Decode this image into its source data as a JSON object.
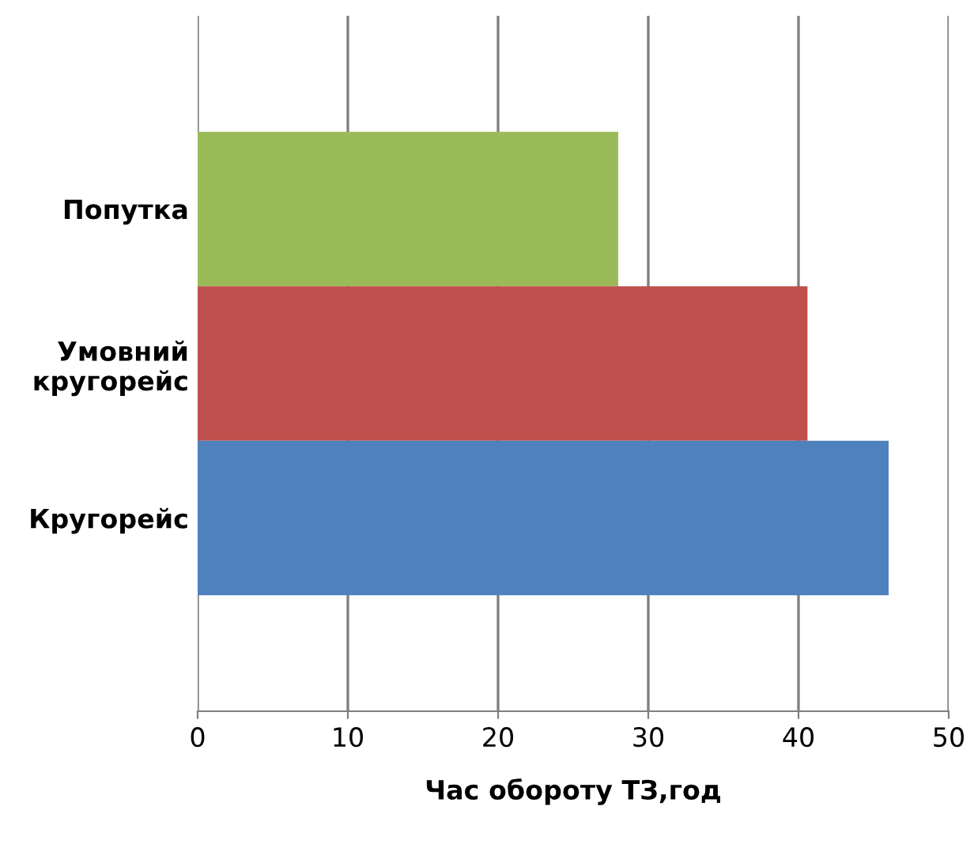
{
  "chart_data": {
    "type": "bar",
    "orientation": "horizontal",
    "xlabel": "Час обороту ТЗ,год",
    "categories": [
      "Попутка",
      "Умовний\nкругорейс",
      "Кругорейс"
    ],
    "values": [
      28,
      40.6,
      46
    ],
    "colors": [
      "#9bbb59",
      "#c0504d",
      "#4f81bd"
    ],
    "xlim": [
      0,
      50
    ],
    "xticks": [
      0,
      10,
      20,
      30,
      40,
      50
    ],
    "grid": "x"
  }
}
